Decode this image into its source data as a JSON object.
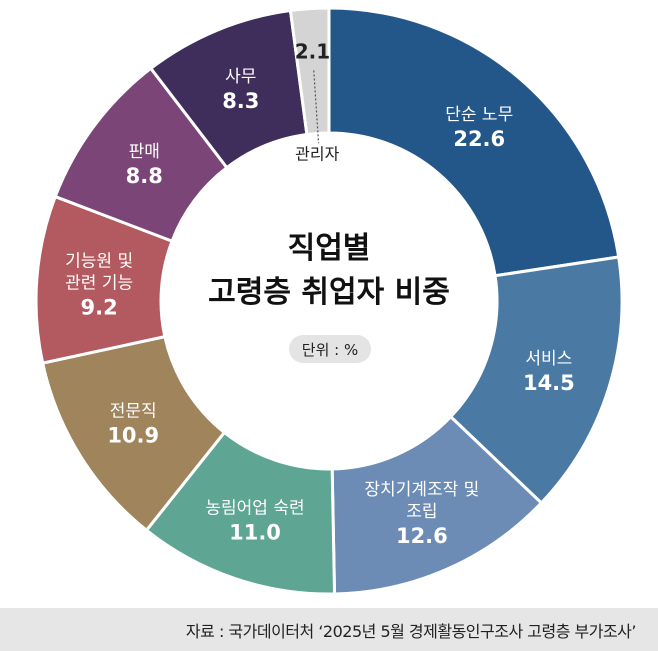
{
  "chart_data": {
    "type": "pie",
    "title_line1": "직업별",
    "title_line2": "고령층 취업자 비중",
    "unit": "단위 : %",
    "slices": [
      {
        "lines": [
          "단순 노무"
        ],
        "value": 22.6,
        "value_label": "22.6",
        "color": "#235789"
      },
      {
        "lines": [
          "서비스"
        ],
        "value": 14.5,
        "value_label": "14.5",
        "color": "#4a79a4"
      },
      {
        "lines": [
          "장치기계조작 및",
          "조립"
        ],
        "value": 12.6,
        "value_label": "12.6",
        "color": "#6c8cb5"
      },
      {
        "lines": [
          "농림어업 숙련"
        ],
        "value": 11.0,
        "value_label": "11.0",
        "color": "#5ea593"
      },
      {
        "lines": [
          "전문직"
        ],
        "value": 10.9,
        "value_label": "10.9",
        "color": "#9f845c"
      },
      {
        "lines": [
          "기능원 및",
          "관련 기능"
        ],
        "value": 9.2,
        "value_label": "9.2",
        "color": "#b25a5f"
      },
      {
        "lines": [
          "판매"
        ],
        "value": 8.8,
        "value_label": "8.8",
        "color": "#7b4577"
      },
      {
        "lines": [
          "사무"
        ],
        "value": 8.3,
        "value_label": "8.3",
        "color": "#3f2e5c"
      },
      {
        "lines": [
          "관리자"
        ],
        "value": 2.1,
        "value_label": "2.1",
        "color": "#d4d4d4"
      }
    ]
  },
  "source": "자료 : 국가데이터처 ‘2025년 5월 경제활동인구조사 고령층 부가조사’"
}
